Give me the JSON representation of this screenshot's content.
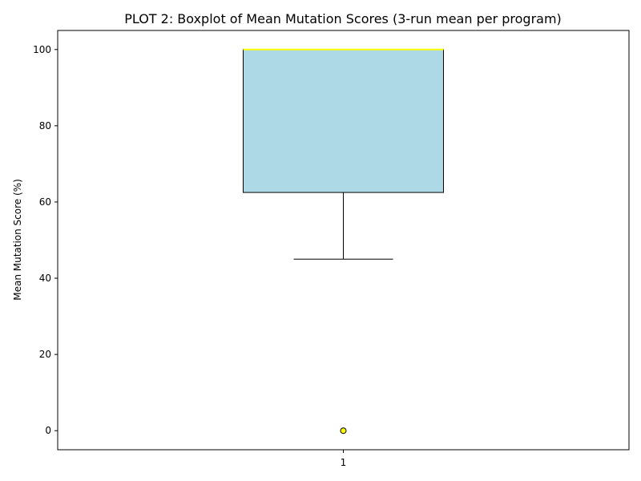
{
  "chart_data": {
    "type": "boxplot",
    "title": "PLOT 2: Boxplot of Mean Mutation Scores (3-run mean per program)",
    "xlabel": "",
    "ylabel": "Mean Mutation Score (%)",
    "ylim": [
      -5,
      105
    ],
    "yticks": [
      0,
      20,
      40,
      60,
      80,
      100
    ],
    "categories": [
      "1"
    ],
    "boxes": [
      {
        "label": "1",
        "whisker_low": 45,
        "q1": 62.5,
        "median": 100,
        "q3": 100,
        "whisker_high": 100,
        "outliers": [
          0
        ]
      }
    ],
    "grid": false,
    "colors": {
      "box_fill": "#add8e6",
      "box_edge": "#000000",
      "median": "#ffff00",
      "whisker": "#000000",
      "outlier_fill": "#ffff00",
      "outlier_edge": "#000000"
    }
  }
}
